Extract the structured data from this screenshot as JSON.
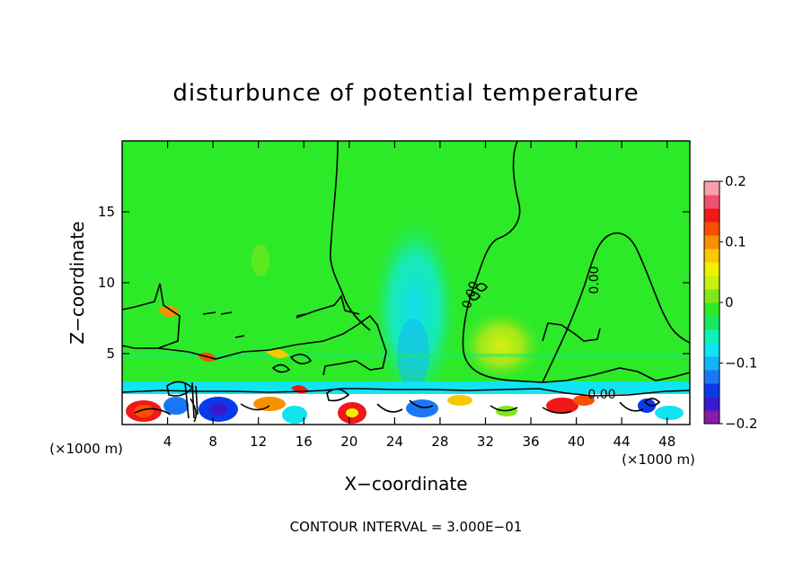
{
  "chart_data": {
    "type": "heatmap",
    "title": "disturbunce of potential temperature",
    "xlabel": "X−coordinate",
    "ylabel": "Z−coordinate",
    "x_unit_left": "(×1000 m)",
    "x_unit_right": "(×1000 m)",
    "xlim": [
      0,
      50
    ],
    "ylim": [
      0,
      20
    ],
    "x_ticks": [
      4,
      8,
      12,
      16,
      20,
      24,
      28,
      32,
      36,
      40,
      44,
      48
    ],
    "x_tick_labels": [
      "4",
      "8",
      "12",
      "16",
      "20",
      "24",
      "28",
      "32",
      "36",
      "40",
      "44",
      "48"
    ],
    "y_ticks": [
      5,
      10,
      15
    ],
    "y_tick_labels": [
      "5",
      "10",
      "15"
    ],
    "colorbar": {
      "min": -0.2,
      "max": 0.2,
      "labels": [
        {
          "value": 0.2,
          "text": "0.2"
        },
        {
          "value": 0.1,
          "text": "0.1"
        },
        {
          "value": 0,
          "text": "0"
        },
        {
          "value": -0.1,
          "text": "−0.1"
        },
        {
          "value": -0.2,
          "text": "−0.2"
        }
      ],
      "colors": [
        "#8a1aa8",
        "#3a1ad0",
        "#0a3ae8",
        "#1a78f8",
        "#12b4f8",
        "#10e4f0",
        "#10f0b8",
        "#18e860",
        "#2cea28",
        "#7ee81a",
        "#c8f010",
        "#f0f000",
        "#f8c800",
        "#f89000",
        "#f85000",
        "#f01818",
        "#f05070",
        "#f8a0a8"
      ]
    },
    "contour_label": "0.00",
    "contour_interval_label": "CONTOUR INTERVAL =  3.000E−01"
  }
}
